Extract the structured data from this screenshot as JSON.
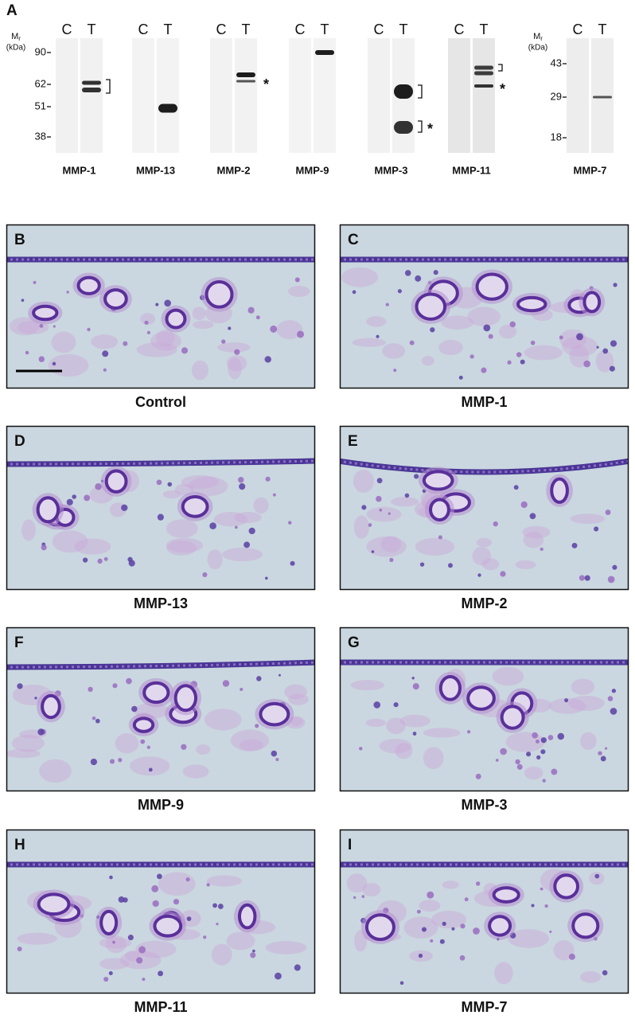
{
  "panel_a": {
    "label": "A",
    "marker_sets": [
      {
        "symbol": "M",
        "subscript": "r",
        "unit": "(kDa)",
        "markers": [
          90,
          62,
          51,
          38
        ]
      },
      {
        "symbol": "M",
        "subscript": "r",
        "unit": "(kDa)",
        "markers": [
          43,
          29,
          18
        ]
      }
    ],
    "blots": [
      {
        "lanes": [
          "C",
          "T"
        ],
        "name": "MMP-1"
      },
      {
        "lanes": [
          "C",
          "T"
        ],
        "name": "MMP-13"
      },
      {
        "lanes": [
          "C",
          "T"
        ],
        "name": "MMP-2",
        "annotation": "*"
      },
      {
        "lanes": [
          "C",
          "T"
        ],
        "name": "MMP-9"
      },
      {
        "lanes": [
          "C",
          "T"
        ],
        "name": "MMP-3",
        "annotation": "*"
      },
      {
        "lanes": [
          "C",
          "T"
        ],
        "name": "MMP-11",
        "annotation": "*"
      },
      {
        "lanes": [
          "C",
          "T"
        ],
        "name": "MMP-7"
      }
    ]
  },
  "micrographs": [
    {
      "label": "B",
      "caption": "Control"
    },
    {
      "label": "C",
      "caption": "MMP-1"
    },
    {
      "label": "D",
      "caption": "MMP-13"
    },
    {
      "label": "E",
      "caption": "MMP-2"
    },
    {
      "label": "F",
      "caption": "MMP-9"
    },
    {
      "label": "G",
      "caption": "MMP-3"
    },
    {
      "label": "H",
      "caption": "MMP-11"
    },
    {
      "label": "I",
      "caption": "MMP-7"
    }
  ]
}
